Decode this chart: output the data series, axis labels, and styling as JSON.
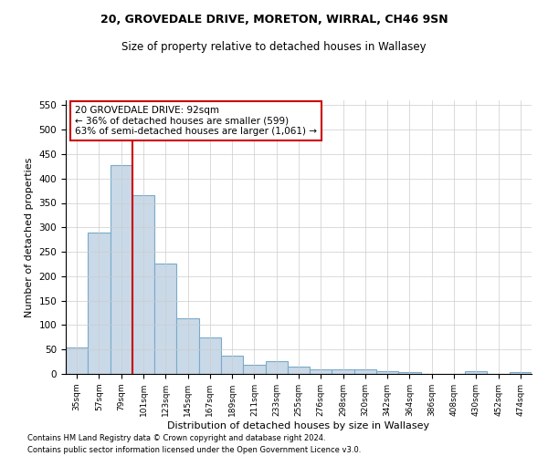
{
  "title1": "20, GROVEDALE DRIVE, MORETON, WIRRAL, CH46 9SN",
  "title2": "Size of property relative to detached houses in Wallasey",
  "xlabel": "Distribution of detached houses by size in Wallasey",
  "ylabel": "Number of detached properties",
  "categories": [
    "35sqm",
    "57sqm",
    "79sqm",
    "101sqm",
    "123sqm",
    "145sqm",
    "167sqm",
    "189sqm",
    "211sqm",
    "233sqm",
    "255sqm",
    "276sqm",
    "298sqm",
    "320sqm",
    "342sqm",
    "364sqm",
    "386sqm",
    "408sqm",
    "430sqm",
    "452sqm",
    "474sqm"
  ],
  "values": [
    55,
    290,
    428,
    365,
    225,
    113,
    75,
    38,
    18,
    27,
    15,
    10,
    9,
    9,
    5,
    4,
    0,
    0,
    6,
    0,
    4
  ],
  "bar_color": "#c9d9e8",
  "bar_edge_color": "#7aaac8",
  "redline_index": 2,
  "annotation_text": "20 GROVEDALE DRIVE: 92sqm\n← 36% of detached houses are smaller (599)\n63% of semi-detached houses are larger (1,061) →",
  "annotation_box_color": "#ffffff",
  "annotation_box_edge": "#cc0000",
  "redline_color": "#cc0000",
  "footnote1": "Contains HM Land Registry data © Crown copyright and database right 2024.",
  "footnote2": "Contains public sector information licensed under the Open Government Licence v3.0.",
  "ylim": [
    0,
    560
  ],
  "yticks": [
    0,
    50,
    100,
    150,
    200,
    250,
    300,
    350,
    400,
    450,
    500,
    550
  ],
  "background_color": "#ffffff",
  "grid_color": "#cccccc"
}
